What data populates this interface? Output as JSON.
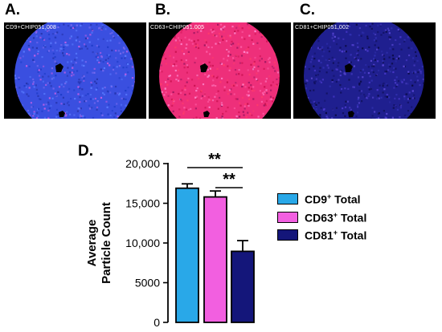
{
  "panels": [
    {
      "label": "A.",
      "caption": "CD9+CHIP051.008",
      "color": "#3a4fe0"
    },
    {
      "label": "B.",
      "caption": "CD63+CHIP051.005",
      "color": "#ee2f7a"
    },
    {
      "label": "C.",
      "caption": "CD81+CHIP051.002",
      "color": "#1f1f8f"
    }
  ],
  "chart_label": "D.",
  "legend": [
    {
      "marker": "CD9",
      "sup": "+",
      "suffix": " Total",
      "color": "#29a8e8"
    },
    {
      "marker": "CD63",
      "sup": "+",
      "suffix": " Total",
      "color": "#f25fe0"
    },
    {
      "marker": "CD81",
      "sup": "+",
      "suffix": " Total",
      "color": "#14167a"
    }
  ],
  "significance": [
    "**",
    "**"
  ],
  "chart_data": {
    "type": "bar",
    "categories": [
      "CD9+ Total",
      "CD63+ Total",
      "CD81+ Total"
    ],
    "values": [
      16900,
      15800,
      8950
    ],
    "errors": [
      550,
      750,
      1350
    ],
    "ylabel_lines": [
      "Average",
      "Particle Count"
    ],
    "yticks": [
      "0",
      "5000",
      "10,000",
      "15,000",
      "20,000"
    ],
    "ytick_values": [
      0,
      5000,
      10000,
      15000,
      20000
    ],
    "ylim": [
      0,
      20000
    ],
    "colors": [
      "#29a8e8",
      "#f25fe0",
      "#14167a"
    ],
    "grid": false,
    "legend_position": "right"
  }
}
